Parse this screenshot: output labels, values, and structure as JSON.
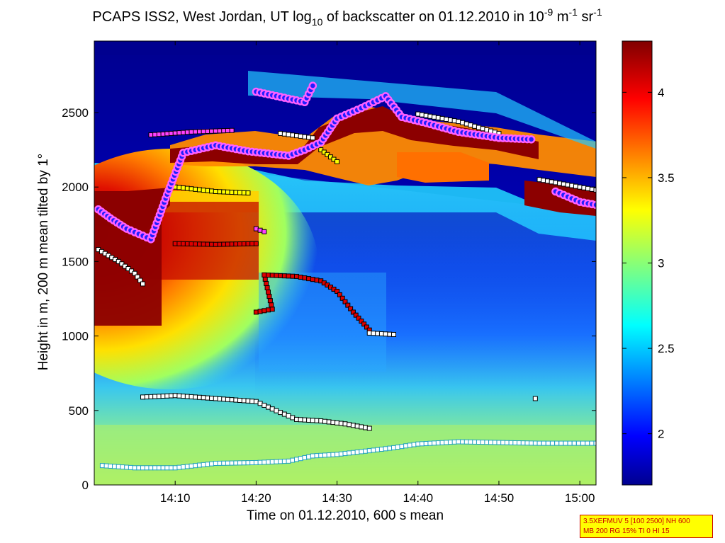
{
  "chart_data": {
    "type": "heatmap",
    "title": {
      "pre": "PCAPS ISS2, West Jordan, UT log",
      "sub10": "10",
      "mid": " of backscatter on 01.12.2010 in 10",
      "sup9": "-9",
      "m": " m",
      "sup1a": "-1",
      "sr": " sr",
      "sup1b": "-1"
    },
    "xlabel": "Time on 01.12.2010, 600 s mean",
    "ylabel": "Height in m, 200 m mean tilted by 1°",
    "xlim": [
      "14:00:30",
      "15:02:00"
    ],
    "ylim": [
      0,
      2980
    ],
    "x_ticks": [
      "14:10",
      "14:20",
      "14:30",
      "14:40",
      "14:50",
      "15:00"
    ],
    "y_ticks": [
      "0",
      "500",
      "1000",
      "1500",
      "2000",
      "2500"
    ],
    "colorbar": {
      "colormap": "jet",
      "range": [
        1.7,
        4.3
      ],
      "ticks": [
        "2",
        "2.5",
        "3",
        "3.5",
        "4"
      ]
    },
    "series": [
      {
        "marker": "white square, cyan edge",
        "points": [
          [
            "14:01",
            130
          ],
          [
            "14:05",
            115
          ],
          [
            "14:10",
            115
          ],
          [
            "14:15",
            145
          ],
          [
            "14:20",
            150
          ],
          [
            "14:24",
            160
          ],
          [
            "14:27",
            195
          ],
          [
            "14:30",
            205
          ],
          [
            "14:34",
            230
          ],
          [
            "14:37",
            250
          ],
          [
            "14:40",
            275
          ],
          [
            "14:45",
            290
          ],
          [
            "14:50",
            285
          ],
          [
            "14:55",
            280
          ],
          [
            "15:02",
            280
          ]
        ]
      },
      {
        "marker": "white square, black edge",
        "points": [
          [
            "14:06",
            590
          ],
          [
            "14:10",
            600
          ],
          [
            "14:15",
            580
          ],
          [
            "14:20",
            560
          ],
          [
            "14:22",
            510
          ],
          [
            "14:25",
            440
          ],
          [
            "14:28",
            430
          ],
          [
            "14:31",
            410
          ],
          [
            "14:34",
            380
          ],
          [
            "14:54.5",
            580
          ]
        ]
      },
      {
        "marker": "red square",
        "points": [
          [
            "14:10",
            1620
          ],
          [
            "14:15",
            1615
          ],
          [
            "14:20",
            1620
          ],
          [
            "14:20",
            1160
          ],
          [
            "14:22",
            1180
          ],
          [
            "14:21",
            1410
          ],
          [
            "14:25",
            1400
          ],
          [
            "14:28",
            1370
          ],
          [
            "14:30",
            1300
          ],
          [
            "14:32",
            1160
          ],
          [
            "14:34",
            1040
          ]
        ]
      },
      {
        "marker": "white square, black edge",
        "points": [
          [
            "14:00.5",
            1580
          ],
          [
            "14:03",
            1500
          ],
          [
            "14:05",
            1420
          ],
          [
            "14:06",
            1350
          ],
          [
            "14:34",
            1020
          ],
          [
            "14:37",
            1010
          ],
          [
            "14:23",
            2360
          ],
          [
            "14:27",
            2330
          ],
          [
            "14:40",
            2490
          ],
          [
            "14:45",
            2440
          ],
          [
            "14:50",
            2360
          ],
          [
            "14:55",
            2050
          ],
          [
            "15:00",
            2000
          ],
          [
            "15:02",
            1980
          ]
        ]
      },
      {
        "marker": "yellow square",
        "points": [
          [
            "14:10",
            2000
          ],
          [
            "14:15",
            1970
          ],
          [
            "14:19",
            1960
          ],
          [
            "14:28",
            2250
          ],
          [
            "14:30",
            2170
          ]
        ]
      },
      {
        "marker": "magenta square",
        "points": [
          [
            "14:07",
            2350
          ],
          [
            "14:12",
            2370
          ],
          [
            "14:17",
            2380
          ],
          [
            "14:20",
            1720
          ],
          [
            "14:21",
            1700
          ]
        ]
      },
      {
        "marker": "blue dot, magenta ring",
        "points": [
          [
            "14:00.5",
            1850
          ],
          [
            "14:02",
            1790
          ],
          [
            "14:04",
            1720
          ],
          [
            "14:07",
            1650
          ],
          [
            "14:09",
            1950
          ],
          [
            "14:11",
            2230
          ],
          [
            "14:15",
            2280
          ],
          [
            "14:19",
            2240
          ],
          [
            "14:24",
            2210
          ],
          [
            "14:26",
            2250
          ],
          [
            "14:28",
            2300
          ],
          [
            "14:30",
            2460
          ],
          [
            "14:33",
            2530
          ],
          [
            "14:36",
            2610
          ],
          [
            "14:38",
            2470
          ],
          [
            "14:41",
            2430
          ],
          [
            "14:45",
            2370
          ],
          [
            "14:50",
            2330
          ],
          [
            "14:54",
            2320
          ],
          [
            "14:57",
            1970
          ],
          [
            "15:00",
            1900
          ],
          [
            "15:02",
            1880
          ],
          [
            "14:20",
            2640
          ],
          [
            "14:26",
            2570
          ],
          [
            "14:27",
            2680
          ]
        ]
      }
    ]
  },
  "info_box": {
    "line1": "3.5XEFMUV 5 [100 2500] NH 600",
    "line2": "MB 200 RG 15% TI 0 HI 15"
  }
}
